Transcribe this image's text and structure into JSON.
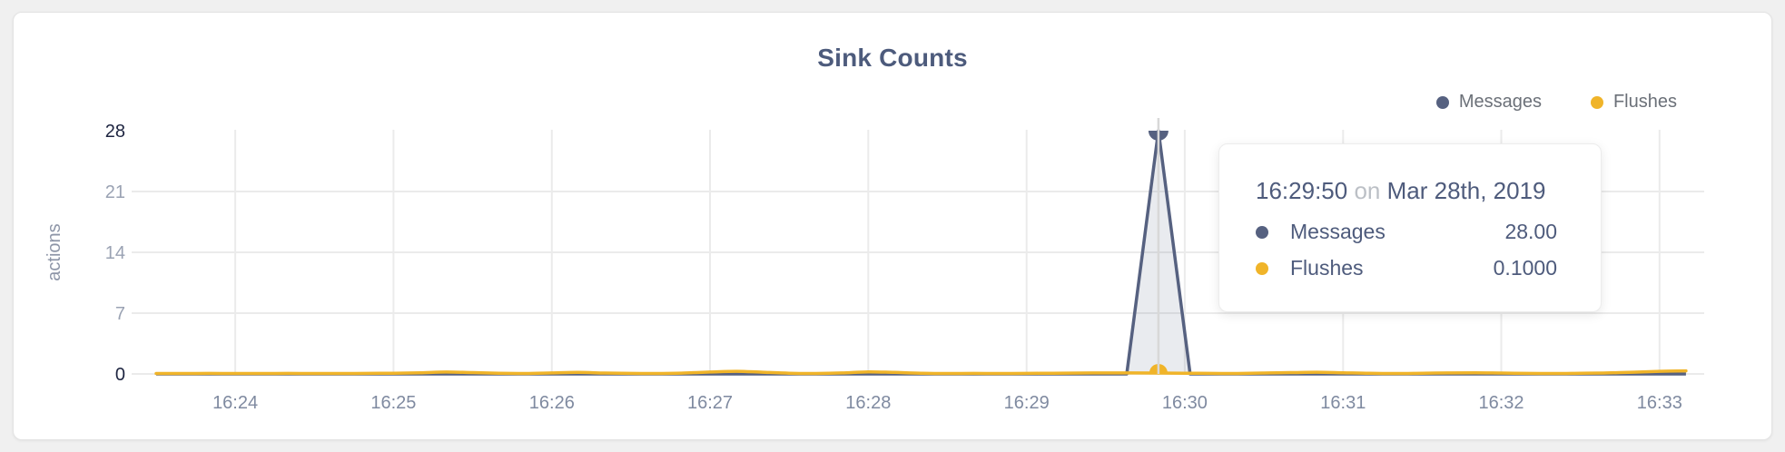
{
  "card": {
    "title": "Sink Counts"
  },
  "legend": {
    "items": [
      {
        "label": "Messages",
        "color": "#566180"
      },
      {
        "label": "Flushes",
        "color": "#f0b429"
      }
    ]
  },
  "tooltip": {
    "time": "16:29:50",
    "connector": "on",
    "date": "Mar 28th, 2019",
    "rows": [
      {
        "label": "Messages",
        "value": "28.00",
        "color": "#566180"
      },
      {
        "label": "Flushes",
        "value": "0.1000",
        "color": "#f0b429"
      }
    ]
  },
  "chart_data": {
    "type": "line",
    "title": "Sink Counts",
    "xlabel": "",
    "ylabel": "actions",
    "ylim": [
      0,
      28
    ],
    "y_ticks": [
      0,
      7,
      14,
      21,
      28
    ],
    "y_ticks_emphasized": [
      0,
      28
    ],
    "grid": true,
    "legend_position": "top-right",
    "x_unit": "seconds after 16:23:30 on Mar 28th, 2019",
    "x_ticks": [
      {
        "t": 30,
        "label": "16:24"
      },
      {
        "t": 90,
        "label": "16:25"
      },
      {
        "t": 150,
        "label": "16:26"
      },
      {
        "t": 210,
        "label": "16:27"
      },
      {
        "t": 270,
        "label": "16:28"
      },
      {
        "t": 330,
        "label": "16:29"
      },
      {
        "t": 390,
        "label": "16:30"
      },
      {
        "t": 450,
        "label": "16:31"
      },
      {
        "t": 510,
        "label": "16:32"
      },
      {
        "t": 570,
        "label": "16:33"
      }
    ],
    "hover": {
      "t": 380,
      "time": "16:29:50",
      "messages": 28.0,
      "flushes": 0.1
    },
    "series": [
      {
        "name": "Messages",
        "color": "#566180",
        "fill": "rgba(86,97,128,0.13)",
        "points": [
          [
            0,
            0
          ],
          [
            50,
            0
          ],
          [
            100,
            0
          ],
          [
            150,
            0
          ],
          [
            200,
            0
          ],
          [
            250,
            0
          ],
          [
            300,
            0
          ],
          [
            350,
            0
          ],
          [
            368,
            0
          ],
          [
            380,
            28
          ],
          [
            392,
            0
          ],
          [
            420,
            0
          ],
          [
            470,
            0
          ],
          [
            520,
            0
          ],
          [
            580,
            0
          ]
        ]
      },
      {
        "name": "Flushes",
        "color": "#f0b429",
        "points": [
          [
            0,
            0.05
          ],
          [
            10,
            0.05
          ],
          [
            20,
            0.06
          ],
          [
            30,
            0.05
          ],
          [
            40,
            0.05
          ],
          [
            50,
            0.06
          ],
          [
            60,
            0.05
          ],
          [
            70,
            0.05
          ],
          [
            80,
            0.06
          ],
          [
            90,
            0.08
          ],
          [
            100,
            0.14
          ],
          [
            110,
            0.22
          ],
          [
            120,
            0.16
          ],
          [
            130,
            0.07
          ],
          [
            140,
            0.05
          ],
          [
            150,
            0.12
          ],
          [
            160,
            0.18
          ],
          [
            170,
            0.1
          ],
          [
            180,
            0.06
          ],
          [
            190,
            0.05
          ],
          [
            200,
            0.1
          ],
          [
            210,
            0.22
          ],
          [
            220,
            0.3
          ],
          [
            230,
            0.2
          ],
          [
            240,
            0.08
          ],
          [
            250,
            0.05
          ],
          [
            260,
            0.12
          ],
          [
            270,
            0.24
          ],
          [
            280,
            0.18
          ],
          [
            290,
            0.08
          ],
          [
            300,
            0.05
          ],
          [
            310,
            0.06
          ],
          [
            320,
            0.05
          ],
          [
            330,
            0.06
          ],
          [
            340,
            0.08
          ],
          [
            350,
            0.1
          ],
          [
            360,
            0.12
          ],
          [
            370,
            0.12
          ],
          [
            380,
            0.1
          ],
          [
            390,
            0.08
          ],
          [
            400,
            0.06
          ],
          [
            410,
            0.05
          ],
          [
            420,
            0.1
          ],
          [
            430,
            0.16
          ],
          [
            440,
            0.2
          ],
          [
            450,
            0.14
          ],
          [
            460,
            0.07
          ],
          [
            470,
            0.05
          ],
          [
            480,
            0.08
          ],
          [
            490,
            0.12
          ],
          [
            500,
            0.14
          ],
          [
            510,
            0.1
          ],
          [
            520,
            0.06
          ],
          [
            530,
            0.05
          ],
          [
            540,
            0.08
          ],
          [
            550,
            0.12
          ],
          [
            560,
            0.2
          ],
          [
            570,
            0.3
          ],
          [
            580,
            0.35
          ]
        ]
      }
    ]
  }
}
